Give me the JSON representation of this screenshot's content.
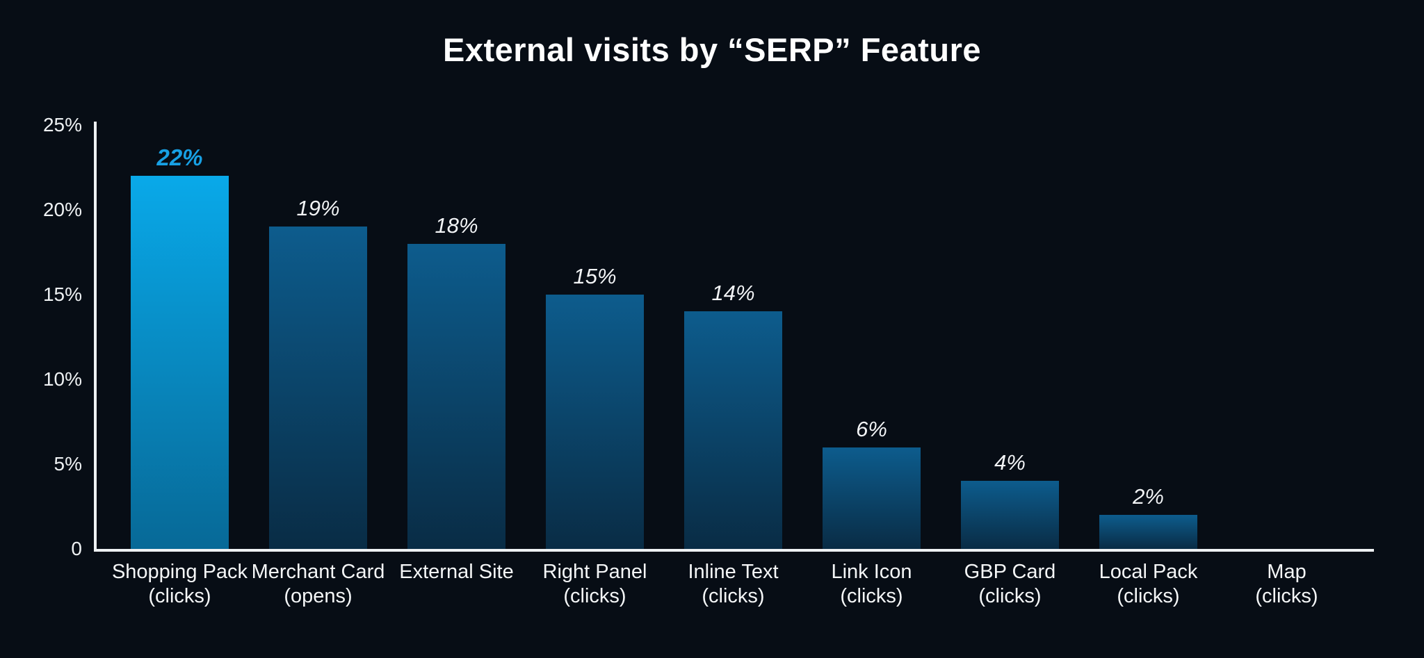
{
  "background_color": "#070d15",
  "chart": {
    "title": "External visits by “SERP” Feature"
  },
  "chart_data": {
    "type": "bar",
    "title": "External visits by “SERP” Feature",
    "categories": [
      [
        "Shopping Pack",
        "(clicks)"
      ],
      [
        "Merchant Card",
        "(opens)"
      ],
      [
        "External Site"
      ],
      [
        "Right Panel",
        "(clicks)"
      ],
      [
        "Inline Text",
        "(clicks)"
      ],
      [
        "Link Icon",
        "(clicks)"
      ],
      [
        "GBP Card",
        "(clicks)"
      ],
      [
        "Local Pack",
        "(clicks)"
      ],
      [
        "Map",
        "(clicks)"
      ]
    ],
    "values": [
      22,
      19,
      18,
      15,
      14,
      6,
      4,
      2,
      0
    ],
    "value_labels": [
      "22%",
      "19%",
      "18%",
      "15%",
      "14%",
      "6%",
      "4%",
      "2%",
      ""
    ],
    "highlight_index": 0,
    "xlabel": "",
    "ylabel": "",
    "ylim": [
      0,
      25
    ],
    "y_ticks": [
      {
        "label": "25%",
        "value": 25
      },
      {
        "label": "20%",
        "value": 20
      },
      {
        "label": "15%",
        "value": 15
      },
      {
        "label": "10%",
        "value": 10
      },
      {
        "label": "5%",
        "value": 5
      },
      {
        "label": "0",
        "value": 0
      }
    ],
    "grid": false,
    "legend": "none",
    "colors": {
      "background": "#070d15",
      "axis": "#eef1f3",
      "bar_top": "#0d5c8d",
      "bar_bottom": "#092c45",
      "highlight_bar_top": "#09a9e9",
      "highlight_bar_bottom": "#076997",
      "highlight_label": "#17a0e4",
      "label_text": "#f2f4f6",
      "title_text": "#ffffff"
    }
  }
}
